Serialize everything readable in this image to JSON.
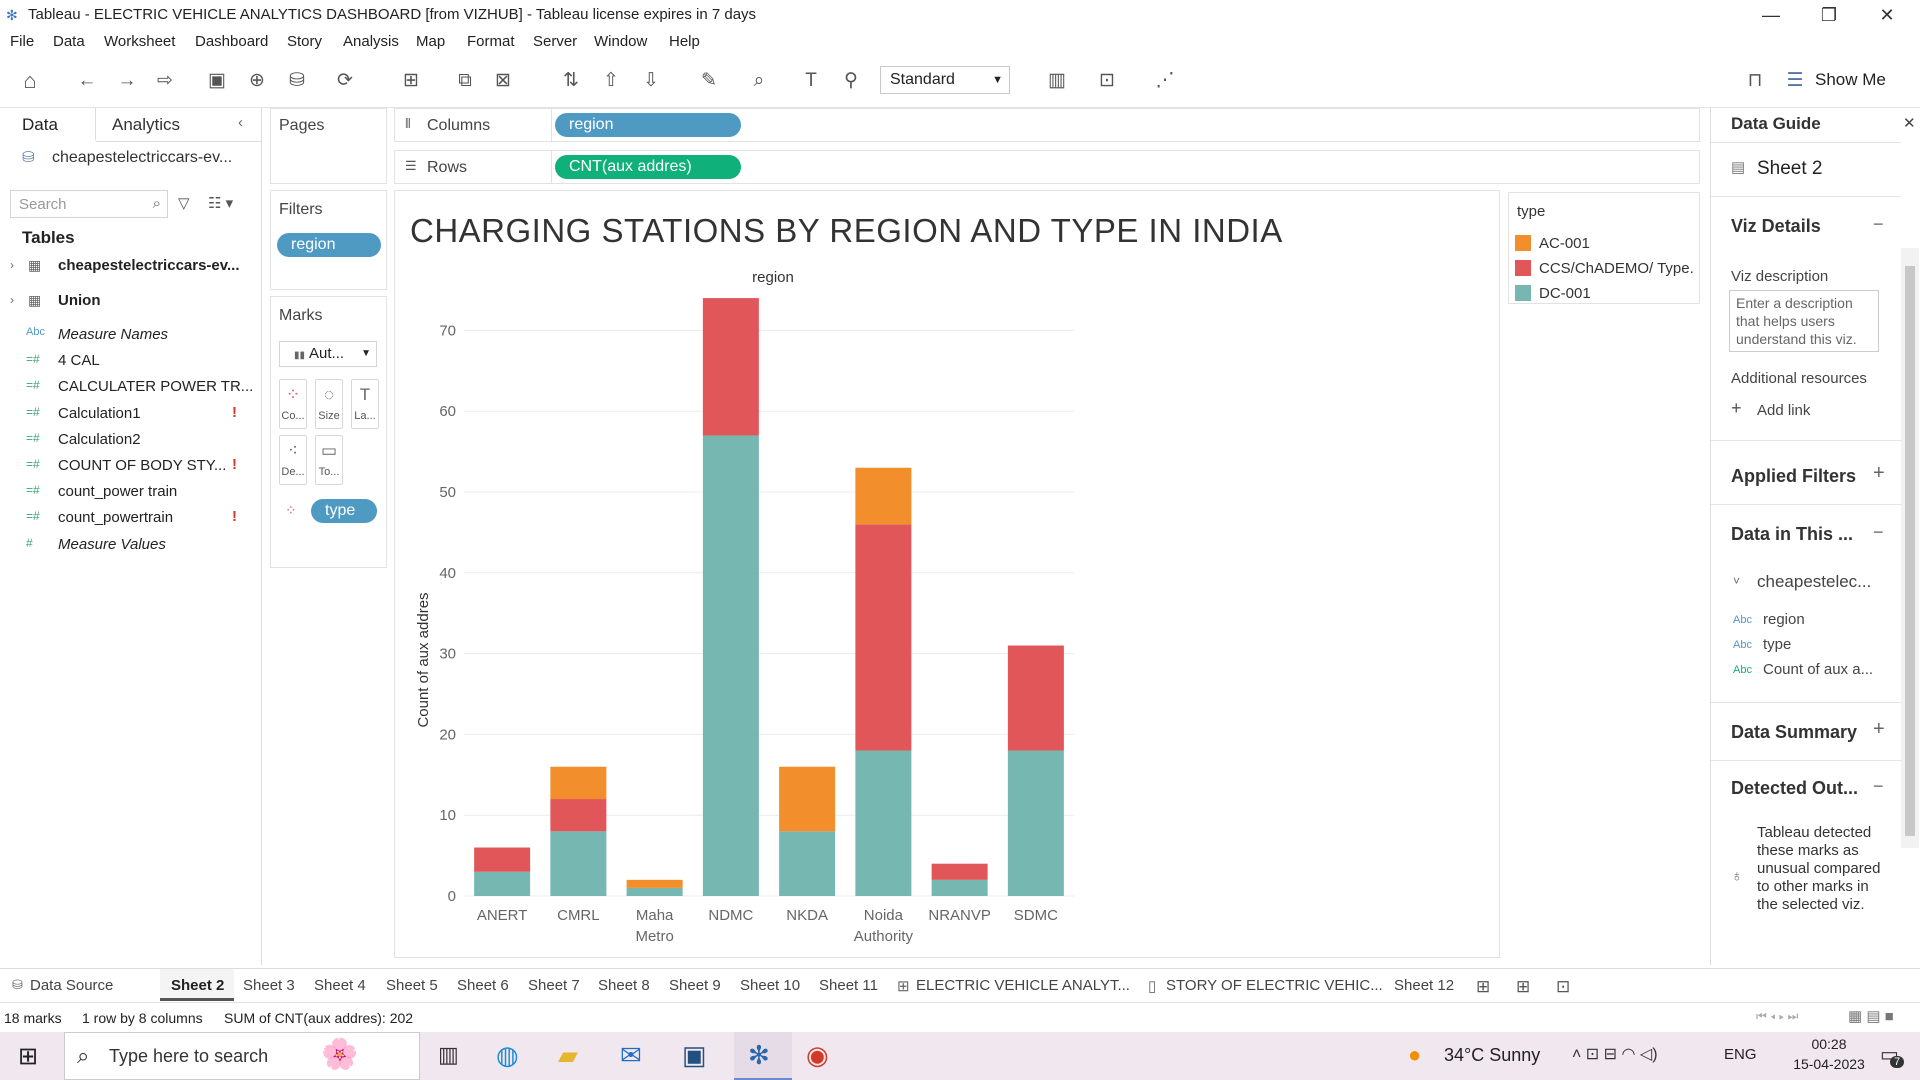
{
  "window": {
    "title": "Tableau - ELECTRIC VEHICLE ANALYTICS DASHBOARD [from VIZHUB] - Tableau license expires in 7 days"
  },
  "menu": [
    "File",
    "Data",
    "Worksheet",
    "Dashboard",
    "Story",
    "Analysis",
    "Map",
    "Format",
    "Server",
    "Window",
    "Help"
  ],
  "toolbar": {
    "fit_mode": "Standard",
    "show_me": "Show Me"
  },
  "datapane": {
    "tab_data": "Data",
    "tab_analytics": "Analytics",
    "source": "cheapestelectriccars-ev...",
    "search_placeholder": "Search",
    "tables_header": "Tables",
    "tables": [
      "cheapestelectriccars-ev...",
      "Union"
    ],
    "fields": [
      {
        "icon": "Abc",
        "name": "Measure Names",
        "italic": true,
        "warn": false
      },
      {
        "icon": "=#",
        "name": "4 CAL",
        "italic": false,
        "warn": false
      },
      {
        "icon": "=#",
        "name": "CALCULATER POWER TR...",
        "italic": false,
        "warn": false
      },
      {
        "icon": "=#",
        "name": "Calculation1",
        "italic": false,
        "warn": true
      },
      {
        "icon": "=#",
        "name": "Calculation2",
        "italic": false,
        "warn": false
      },
      {
        "icon": "=#",
        "name": "COUNT OF BODY STY...",
        "italic": false,
        "warn": true
      },
      {
        "icon": "=#",
        "name": "count_power train",
        "italic": false,
        "warn": false
      },
      {
        "icon": "=#",
        "name": "count_powertrain",
        "italic": false,
        "warn": true
      },
      {
        "icon": "#",
        "name": "Measure Values",
        "italic": true,
        "warn": false
      }
    ],
    "warn_mark": "!"
  },
  "shelves": {
    "pages": "Pages",
    "filters": "Filters",
    "filter_pill": "region",
    "marks": "Marks",
    "mark_type": "Aut...",
    "mark_buttons": [
      "Co...",
      "Size",
      "La...",
      "De...",
      "To..."
    ],
    "marks_pill": "type",
    "columns_label": "Columns",
    "columns_pill": "region",
    "rows_label": "Rows",
    "rows_pill": "CNT(aux addres)"
  },
  "chart_data": {
    "type": "bar",
    "stacked": true,
    "title": "CHARGING STATIONS BY REGION AND TYPE IN INDIA",
    "xlabel": "region",
    "ylabel": "Count of aux addres",
    "categories": [
      "ANERT",
      "CMRL",
      "Maha Metro",
      "NDMC",
      "NKDA",
      "Noida Authority",
      "NRANVP",
      "SDMC"
    ],
    "category_lines": [
      [
        "ANERT"
      ],
      [
        "CMRL"
      ],
      [
        "Maha",
        "Metro"
      ],
      [
        "NDMC"
      ],
      [
        "NKDA"
      ],
      [
        "Noida",
        "Authority"
      ],
      [
        "NRANVP"
      ],
      [
        "SDMC"
      ]
    ],
    "series": [
      {
        "name": "DC-001",
        "color": "#76b7b2",
        "values": [
          3,
          8,
          1,
          57,
          8,
          18,
          2,
          18
        ]
      },
      {
        "name": "CCS/ChADEMO/ Type..",
        "color": "#e15759",
        "values": [
          3,
          4,
          0,
          17,
          0,
          28,
          2,
          13
        ]
      },
      {
        "name": "AC-001",
        "color": "#f28e2b",
        "values": [
          0,
          4,
          1,
          0,
          8,
          7,
          0,
          0
        ]
      }
    ],
    "ylim": [
      0,
      75
    ],
    "yticks": [
      0,
      10,
      20,
      30,
      40,
      50,
      60,
      70
    ],
    "grid": true,
    "legend": {
      "title": "type",
      "position": "right",
      "entries": [
        {
          "label": "AC-001",
          "color": "#f28e2b"
        },
        {
          "label": "CCS/ChADEMO/ Type..",
          "color": "#e15759"
        },
        {
          "label": "DC-001",
          "color": "#76b7b2"
        }
      ]
    }
  },
  "guide": {
    "title": "Data Guide",
    "sheet": "Sheet 2",
    "viz_details": "Viz Details",
    "viz_desc_label": "Viz description",
    "viz_desc_placeholder": "Enter a description that helps users understand this viz.",
    "additional": "Additional resources",
    "add_link": "Add link",
    "applied_filters": "Applied Filters",
    "data_in_this": "Data in This ...",
    "source": "cheapestelec...",
    "fields": [
      "region",
      "type",
      "Count of aux a..."
    ],
    "field_icon": "Abc",
    "data_summary": "Data Summary",
    "detected": "Detected Out...",
    "detected_text": "Tableau detected these marks as unusual compared to other marks in the selected viz."
  },
  "sheets": {
    "data_source": "Data Source",
    "tabs": [
      "Sheet 2",
      "Sheet 3",
      "Sheet 4",
      "Sheet 5",
      "Sheet 6",
      "Sheet 7",
      "Sheet 8",
      "Sheet 9",
      "Sheet 10",
      "Sheet 11",
      "ELECTRIC VEHICLE ANALYT...",
      "STORY OF ELECTRIC VEHIC...",
      "Sheet 12"
    ],
    "active": "Sheet 2"
  },
  "status": {
    "marks": "18 marks",
    "dims": "1 row by 8 columns",
    "sum": "SUM of CNT(aux addres): 202"
  },
  "taskbar": {
    "search_placeholder": "Type here to search",
    "weather": "34°C  Sunny",
    "lang": "ENG",
    "time": "00:28",
    "date": "15-04-2023",
    "notif": "7"
  }
}
